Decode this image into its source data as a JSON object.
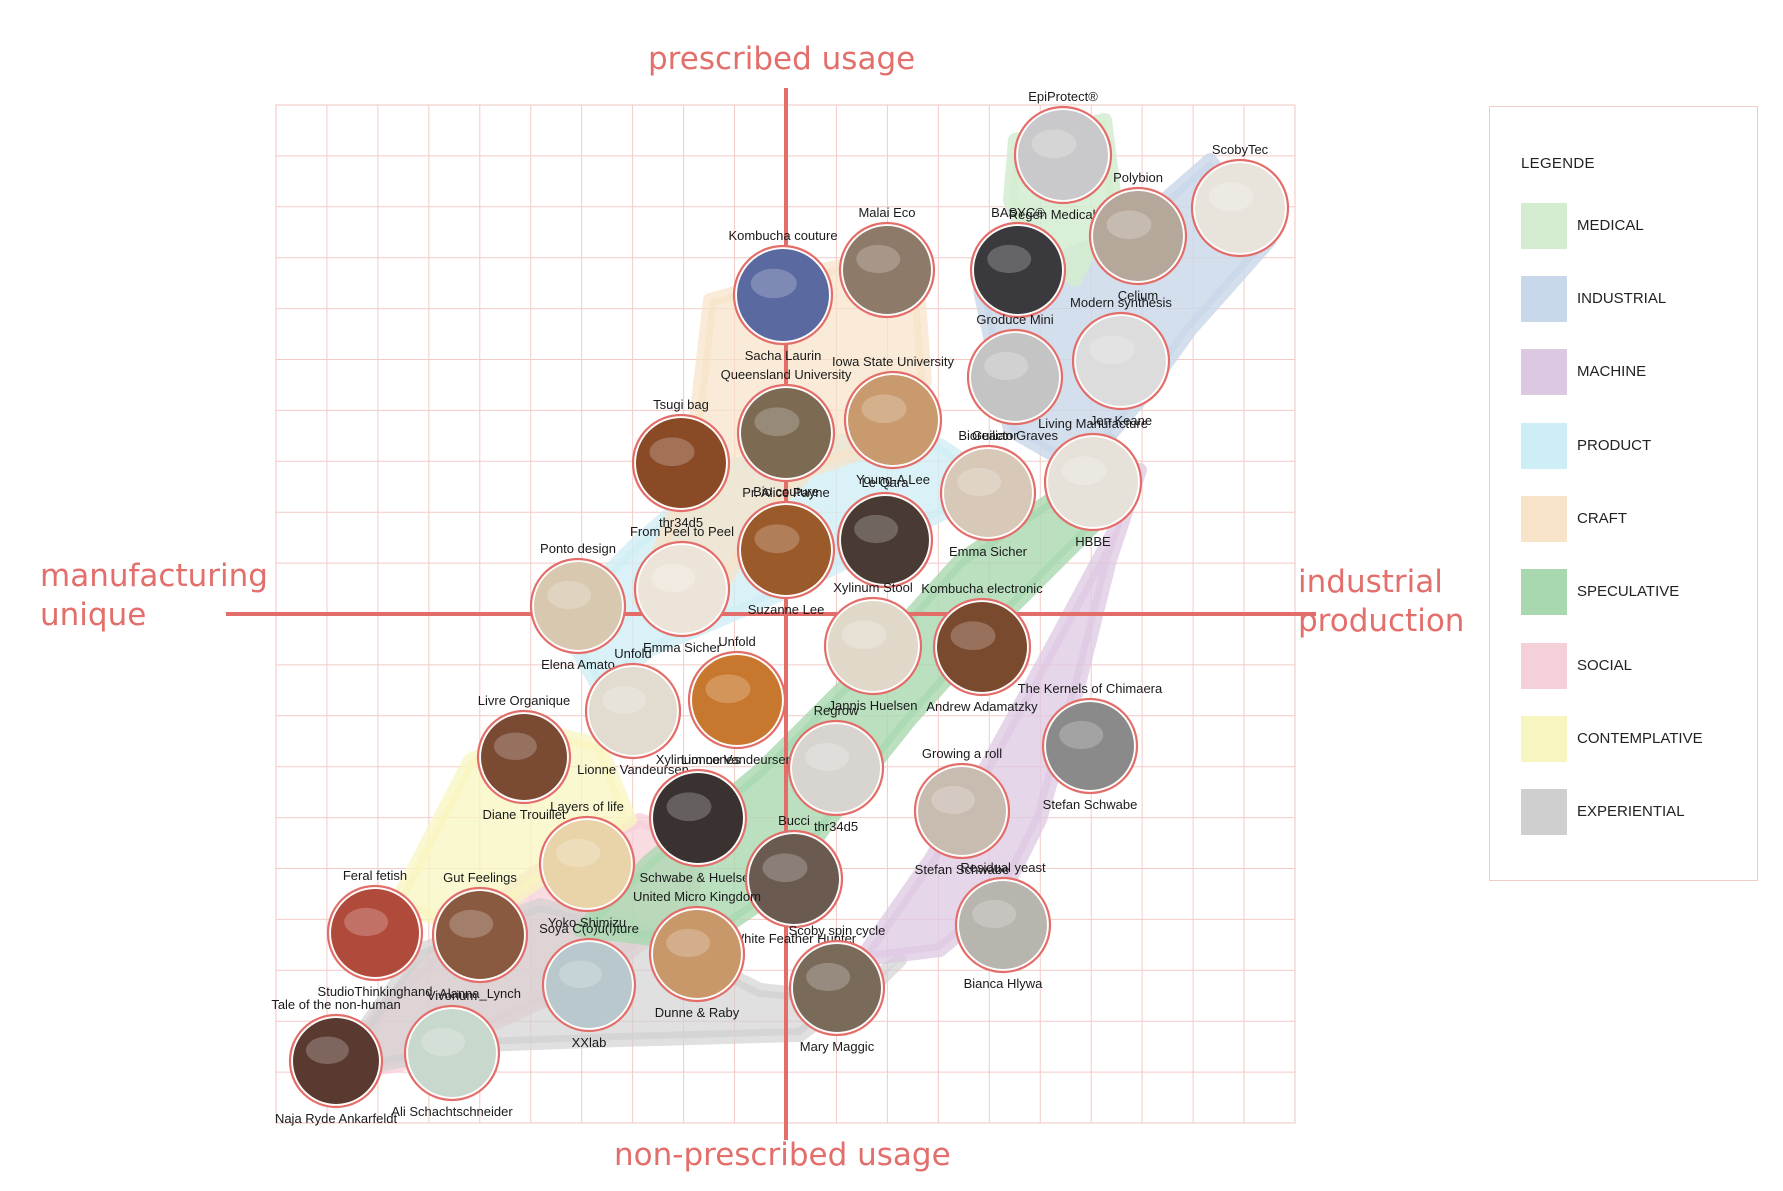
{
  "axes": {
    "top": "prescribed usage",
    "bottom": "non-prescribed usage",
    "left": "manufacturing unique",
    "right": "industrial production"
  },
  "legend": {
    "title": "LEGENDE",
    "items": [
      {
        "label": "MEDICAL",
        "color": "#d3ecd0"
      },
      {
        "label": "INDUSTRIAL",
        "color": "#c9d7ea"
      },
      {
        "label": "MACHINE",
        "color": "#ddc8e2"
      },
      {
        "label": "PRODUCT",
        "color": "#cdeef4"
      },
      {
        "label": "CRAFT",
        "color": "#f6e3c8"
      },
      {
        "label": "SPECULATIVE",
        "color": "#a9d8b0"
      },
      {
        "label": "SOCIAL",
        "color": "#f6d0d8"
      },
      {
        "label": "CONTEMPLATIVE",
        "color": "#f8f6c0"
      },
      {
        "label": "EXPERIENTIAL",
        "color": "#cfcfcf"
      }
    ]
  },
  "projects": [
    {
      "name": "EpiProtect®",
      "maker": "Regen Medical Ltd",
      "fill": "#c9c9cb"
    },
    {
      "name": "ScobyTec",
      "maker": "",
      "fill": "#e8e4dc"
    },
    {
      "name": "Polybion",
      "maker": "Celium",
      "fill": "#b5a89a"
    },
    {
      "name": "BASYC®",
      "maker": "",
      "fill": "#3a3a3e"
    },
    {
      "name": "Malai Eco",
      "maker": "",
      "fill": "#8e7a68"
    },
    {
      "name": "Kombucha couture",
      "maker": "Sacha Laurin",
      "fill": "#5a6aa0"
    },
    {
      "name": "Groduce Mini",
      "maker": "Guilian Graves",
      "fill": "#c4c4c4"
    },
    {
      "name": "Modern synthesis",
      "maker": "Jen Keane",
      "fill": "#dcdcdc"
    },
    {
      "name": "Queensland University",
      "maker": "Pr. Alice Payne",
      "fill": "#7c6a52"
    },
    {
      "name": "Iowa State University",
      "maker": "Young-A Lee",
      "fill": "#c89a6e"
    },
    {
      "name": "Tsugi bag",
      "maker": "thr34d5",
      "fill": "#8a4a26"
    },
    {
      "name": "Bioreactor",
      "maker": "Emma Sicher",
      "fill": "#d8c8b8"
    },
    {
      "name": "Living Manufacture",
      "maker": "HBBE",
      "fill": "#e6e2da"
    },
    {
      "name": "Bio couture",
      "maker": "Suzanne Lee",
      "fill": "#9a5a2a"
    },
    {
      "name": "Le Qara",
      "maker": "",
      "fill": "#4a3a34"
    },
    {
      "name": "Ponto design",
      "maker": "Elena Amato",
      "fill": "#d8c8b0"
    },
    {
      "name": "From Peel to Peel",
      "maker": "Emma Sicher",
      "fill": "#ece4d8"
    },
    {
      "name": "Xylinum Stool",
      "maker": "Jannis Huelsen",
      "fill": "#e0d8c8"
    },
    {
      "name": "Kombucha electronic",
      "maker": "Andrew Adamatzky",
      "fill": "#7a4a2e"
    },
    {
      "name": "Unfold",
      "maker": "Lionne Vandeursen",
      "fill": "#e2dcd0"
    },
    {
      "name": "Unfold",
      "maker": "Lionne Vandeursen",
      "fill": "#c8782e"
    },
    {
      "name": "Livre Organique",
      "maker": "Diane Trouillet",
      "fill": "#7a4a32"
    },
    {
      "name": "Regrow",
      "maker": "thr34d5",
      "fill": "#d8d4d0"
    },
    {
      "name": "The Kernels of Chimaera",
      "maker": "Stefan Schwabe",
      "fill": "#8a8a8a"
    },
    {
      "name": "Xylinum cones",
      "maker": "Schwabe & Huelsen",
      "fill": "#3a3230"
    },
    {
      "name": "Growing a roll",
      "maker": "Stefan Schwabe",
      "fill": "#c8bcb0"
    },
    {
      "name": "Layers of life",
      "maker": "Yoko Shimizu",
      "fill": "#e8d4a8"
    },
    {
      "name": "Bucci",
      "maker": "White Feather Hunter",
      "fill": "#6a5a50"
    },
    {
      "name": "Residual yeast",
      "maker": "Bianca Hlywa",
      "fill": "#b8b4ae"
    },
    {
      "name": "Feral fetish",
      "maker": "StudioThinkinghand",
      "fill": "#b04a3a"
    },
    {
      "name": "Gut Feelings",
      "maker": "Alanna_Lynch",
      "fill": "#8a5a40"
    },
    {
      "name": "Soya C(o)u(l)ture",
      "maker": "XXlab",
      "fill": "#b8c8cc"
    },
    {
      "name": "United Micro Kingdom",
      "maker": "Dunne & Raby",
      "fill": "#c8986a"
    },
    {
      "name": "Scoby spin cycle",
      "maker": "Mary Maggic",
      "fill": "#7a6a5a"
    },
    {
      "name": "Tale of the non-human",
      "maker": "Naja Ryde Ankarfeldt",
      "fill": "#5a3a30"
    },
    {
      "name": "Vivorium",
      "maker": "Ali Schachtschneider",
      "fill": "#c8d8cc"
    }
  ]
}
